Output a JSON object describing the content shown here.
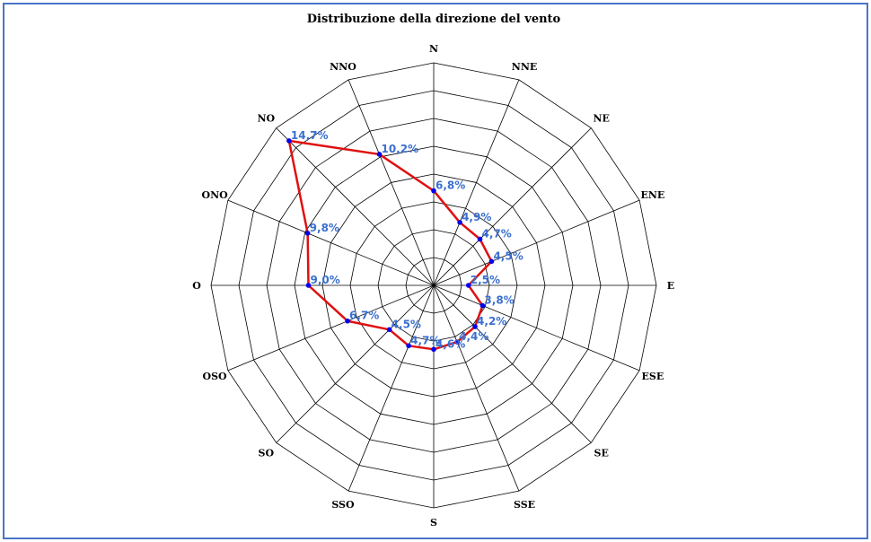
{
  "chart_data": {
    "type": "radar",
    "title": "Distribuzione della direzione del vento",
    "categories": [
      "N",
      "NNE",
      "NE",
      "ENE",
      "E",
      "ESE",
      "SE",
      "SSE",
      "S",
      "SSO",
      "SO",
      "OSO",
      "O",
      "ONO",
      "NO",
      "NNO"
    ],
    "values": [
      6.8,
      4.9,
      4.7,
      4.5,
      2.5,
      3.8,
      4.2,
      4.4,
      4.6,
      4.7,
      4.5,
      6.7,
      9.0,
      9.8,
      14.7,
      10.2
    ],
    "labels": [
      "6,8%",
      "4,9%",
      "4,7%",
      "4,5%",
      "2,5%",
      "3,8%",
      "4,2%",
      "4,4%",
      "4,6%",
      "4,7%",
      "4,5%",
      "6,7%",
      "9,0%",
      "9,8%",
      "14,7%",
      "10,2%"
    ],
    "rlim": [
      0,
      16
    ],
    "ring_step": 2,
    "grid": true,
    "legend": "none",
    "colors": {
      "line": "#e01010",
      "marker": "#0000ee",
      "data_label": "#3a6fcf",
      "grid": "#000000",
      "border": "#4a74c9"
    }
  }
}
